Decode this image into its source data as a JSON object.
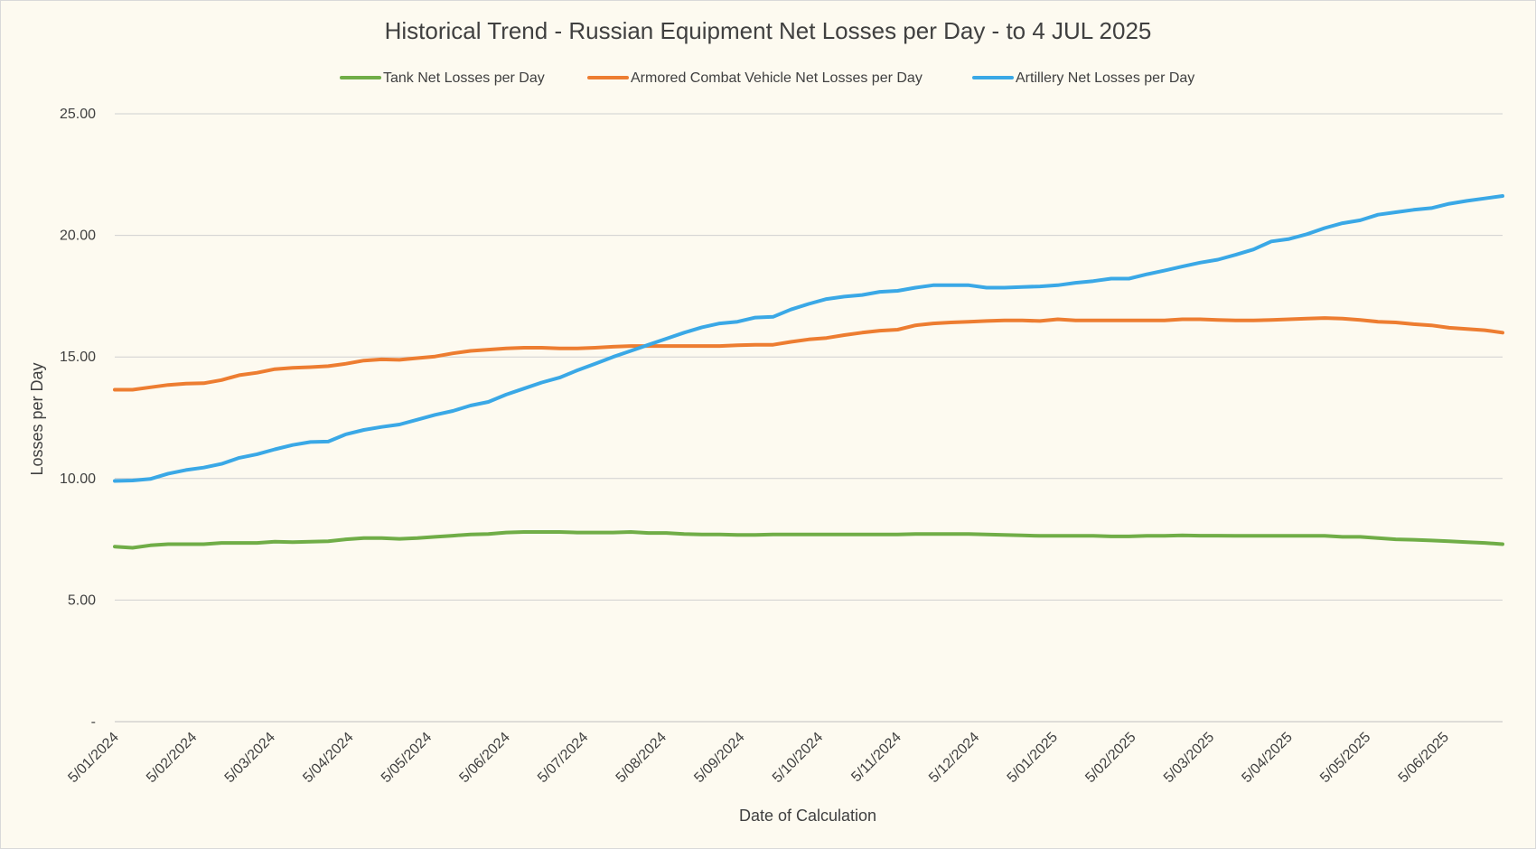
{
  "chart_data": {
    "type": "line",
    "title": "Historical Trend - Russian Equipment Net Losses per Day - to 4 JUL 2025",
    "xlabel": "Date of Calculation",
    "ylabel": "Losses per Day",
    "ylim": [
      0,
      25
    ],
    "yticks": [
      0,
      5,
      10,
      15,
      20,
      25
    ],
    "ytick_labels": [
      "-",
      "5.00",
      "10.00",
      "15.00",
      "20.00",
      "25.00"
    ],
    "grid": true,
    "legend_position": "top",
    "xtick_labels": [
      "5/01/2024",
      "5/02/2024",
      "5/03/2024",
      "5/04/2024",
      "5/05/2024",
      "5/06/2024",
      "5/07/2024",
      "5/08/2024",
      "5/09/2024",
      "5/10/2024",
      "5/11/2024",
      "5/12/2024",
      "5/01/2025",
      "5/02/2025",
      "5/03/2025",
      "5/04/2025",
      "5/05/2025",
      "5/06/2025"
    ],
    "n_points": 79,
    "series": [
      {
        "name": "Tank Net Losses per Day",
        "color": "#70ad47",
        "values": [
          7.2,
          7.15,
          7.25,
          7.3,
          7.3,
          7.3,
          7.35,
          7.35,
          7.35,
          7.4,
          7.38,
          7.4,
          7.42,
          7.5,
          7.55,
          7.55,
          7.52,
          7.55,
          7.6,
          7.65,
          7.7,
          7.72,
          7.78,
          7.8,
          7.8,
          7.8,
          7.78,
          7.78,
          7.78,
          7.8,
          7.76,
          7.76,
          7.72,
          7.7,
          7.7,
          7.68,
          7.68,
          7.7,
          7.7,
          7.7,
          7.7,
          7.7,
          7.7,
          7.7,
          7.7,
          7.72,
          7.72,
          7.72,
          7.72,
          7.7,
          7.68,
          7.66,
          7.64,
          7.64,
          7.64,
          7.64,
          7.62,
          7.62,
          7.64,
          7.64,
          7.66,
          7.65,
          7.65,
          7.64,
          7.64,
          7.64,
          7.64,
          7.64,
          7.64,
          7.6,
          7.6,
          7.55,
          7.5,
          7.48,
          7.45,
          7.42,
          7.38,
          7.35,
          7.3
        ]
      },
      {
        "name": "Armored Combat Vehicle Net Losses per Day",
        "color": "#ed7d31",
        "values": [
          13.65,
          13.65,
          13.75,
          13.85,
          13.9,
          13.92,
          14.05,
          14.25,
          14.35,
          14.5,
          14.55,
          14.58,
          14.62,
          14.72,
          14.85,
          14.9,
          14.88,
          14.95,
          15.02,
          15.15,
          15.25,
          15.3,
          15.35,
          15.38,
          15.38,
          15.35,
          15.35,
          15.38,
          15.42,
          15.45,
          15.45,
          15.45,
          15.45,
          15.45,
          15.45,
          15.48,
          15.5,
          15.5,
          15.62,
          15.72,
          15.78,
          15.9,
          16.0,
          16.08,
          16.12,
          16.3,
          16.38,
          16.42,
          16.45,
          16.48,
          16.5,
          16.5,
          16.48,
          16.55,
          16.5,
          16.5,
          16.5,
          16.5,
          16.5,
          16.5,
          16.55,
          16.55,
          16.52,
          16.5,
          16.5,
          16.52,
          16.55,
          16.58,
          16.6,
          16.58,
          16.52,
          16.45,
          16.42,
          16.35,
          16.3,
          16.2,
          16.15,
          16.1,
          16.0
        ]
      },
      {
        "name": "Artillery Net Losses per Day",
        "color": "#3aa8e6",
        "values": [
          9.9,
          9.92,
          9.98,
          10.2,
          10.35,
          10.45,
          10.6,
          10.85,
          11.0,
          11.2,
          11.38,
          11.5,
          11.52,
          11.82,
          12.0,
          12.12,
          12.22,
          12.42,
          12.62,
          12.78,
          13.0,
          13.15,
          13.45,
          13.7,
          13.95,
          14.15,
          14.45,
          14.72,
          15.0,
          15.25,
          15.5,
          15.75,
          16.0,
          16.22,
          16.38,
          16.45,
          16.62,
          16.65,
          16.95,
          17.18,
          17.38,
          17.48,
          17.55,
          17.68,
          17.72,
          17.85,
          17.95,
          17.95,
          17.95,
          17.85,
          17.85,
          17.88,
          17.9,
          17.95,
          18.05,
          18.12,
          18.22,
          18.22,
          18.4,
          18.55,
          18.72,
          18.88,
          19.0,
          19.2,
          19.42,
          19.75,
          19.85,
          20.05,
          20.3,
          20.5,
          20.62,
          20.85,
          20.95,
          21.05,
          21.12,
          21.3,
          21.42,
          21.52,
          21.62
        ]
      }
    ]
  }
}
